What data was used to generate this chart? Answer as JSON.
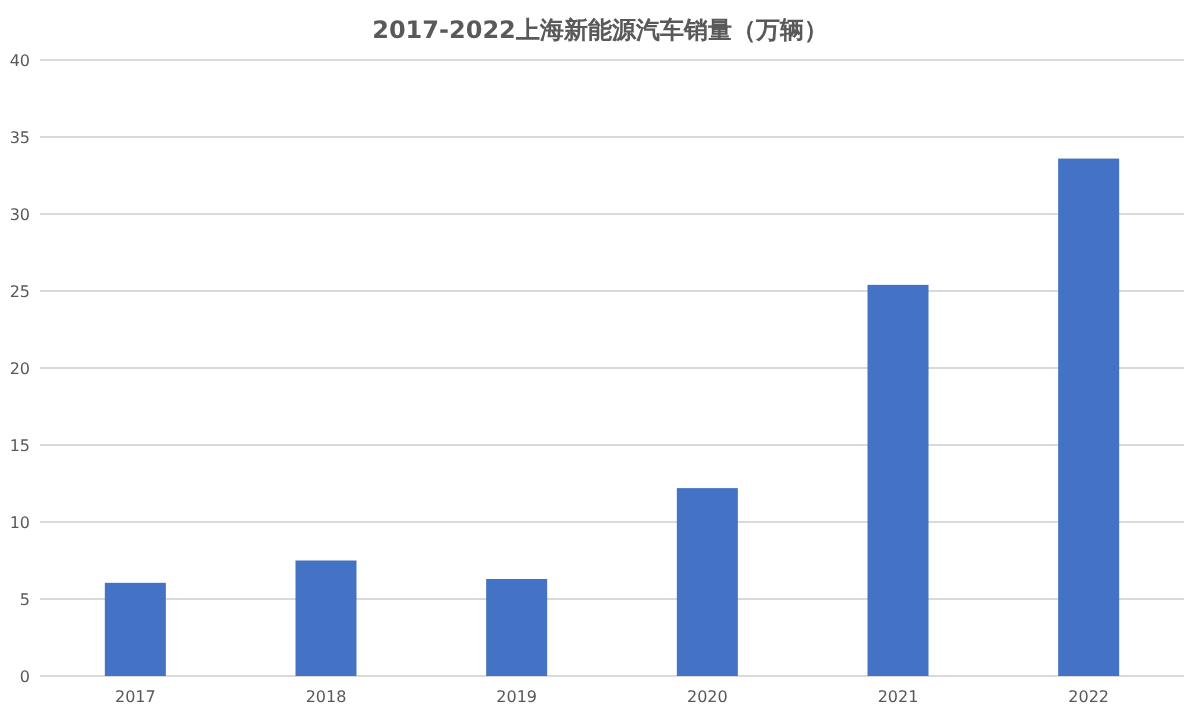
{
  "chart_data": {
    "type": "bar",
    "title": "2017-2022上海新能源汽车销量（万辆）",
    "categories": [
      "2017",
      "2018",
      "2019",
      "2020",
      "2021",
      "2022"
    ],
    "values": [
      6.05,
      7.5,
      6.3,
      12.2,
      25.4,
      33.6
    ],
    "color": "#4472c4",
    "ylim": [
      0,
      40
    ],
    "yticks": [
      0,
      5,
      10,
      15,
      20,
      25,
      30,
      35,
      40
    ],
    "grid": "y"
  }
}
